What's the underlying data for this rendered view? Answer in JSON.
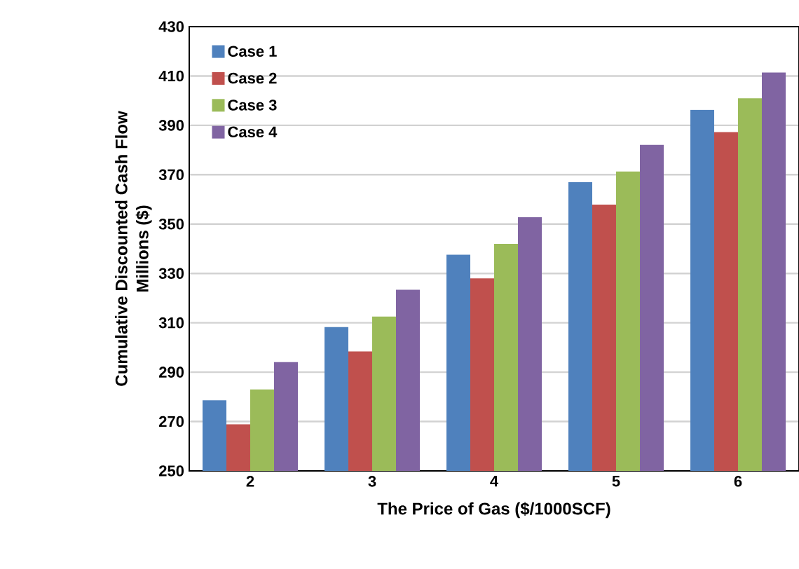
{
  "chart_data": {
    "type": "bar",
    "xlabel": "The Price of Gas ($/1000SCF)",
    "ylabel": "Cumulative Discounted Cash Flow\nMillions ($)",
    "categories": [
      "2",
      "3",
      "4",
      "5",
      "6"
    ],
    "series": [
      {
        "name": "Case 1",
        "color": "#4f81bd",
        "values": [
          278.6,
          308.3,
          337.6,
          367,
          396.3
        ]
      },
      {
        "name": "Case 2",
        "color": "#c0504d",
        "values": [
          268.9,
          298.4,
          328,
          357.9,
          387.3
        ]
      },
      {
        "name": "Case 3",
        "color": "#9bbb59",
        "values": [
          283,
          312.5,
          342,
          371.3,
          401
        ]
      },
      {
        "name": "Case 4",
        "color": "#8064a2",
        "values": [
          294.1,
          323.4,
          352.8,
          382.1,
          411.4
        ]
      }
    ],
    "ylim": [
      250,
      430
    ],
    "yticks": [
      250,
      270,
      290,
      310,
      330,
      350,
      370,
      390,
      410,
      430
    ],
    "grid": "y",
    "legend": "top left"
  }
}
